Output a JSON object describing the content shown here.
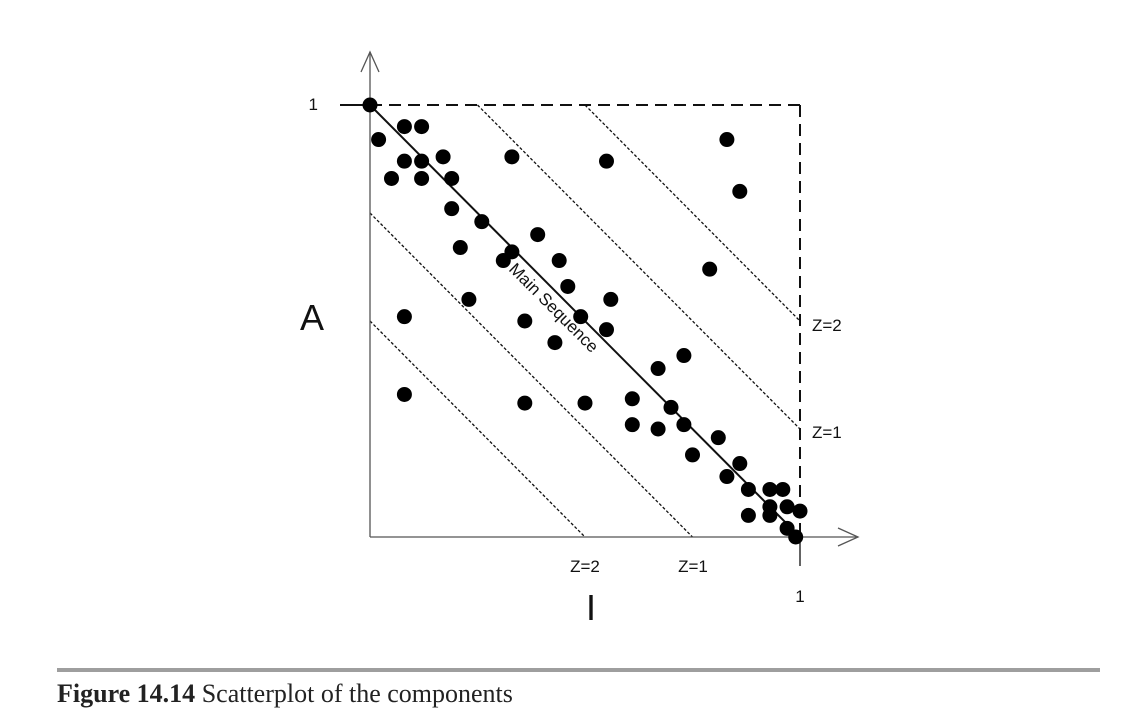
{
  "chart_data": {
    "type": "scatter",
    "title": "",
    "xlabel": "I",
    "ylabel": "A",
    "xlim": [
      0,
      1
    ],
    "ylim": [
      0,
      1
    ],
    "x_tick_labels": [
      "1"
    ],
    "y_tick_labels": [
      "1"
    ],
    "grid": false,
    "reference_lines": [
      {
        "label": "Main Sequence",
        "intercept": 1.0,
        "style": "solid"
      },
      {
        "label": "Z=1",
        "intercept": 1.25,
        "style": "dotted",
        "side": "upper"
      },
      {
        "label": "Z=2",
        "intercept": 1.5,
        "style": "dotted",
        "side": "upper"
      },
      {
        "label": "Z=1",
        "intercept": 0.75,
        "style": "dotted",
        "side": "lower"
      },
      {
        "label": "Z=2",
        "intercept": 0.5,
        "style": "dotted",
        "side": "lower"
      }
    ],
    "bounding_box": {
      "style": "dashed",
      "x": [
        0,
        1
      ],
      "y": [
        0,
        1
      ]
    },
    "points": [
      [
        0.0,
        1.0
      ],
      [
        0.02,
        0.92
      ],
      [
        0.08,
        0.95
      ],
      [
        0.12,
        0.95
      ],
      [
        0.08,
        0.87
      ],
      [
        0.12,
        0.87
      ],
      [
        0.17,
        0.88
      ],
      [
        0.05,
        0.83
      ],
      [
        0.12,
        0.83
      ],
      [
        0.19,
        0.83
      ],
      [
        0.19,
        0.76
      ],
      [
        0.26,
        0.73
      ],
      [
        0.21,
        0.67
      ],
      [
        0.31,
        0.64
      ],
      [
        0.39,
        0.7
      ],
      [
        0.44,
        0.64
      ],
      [
        0.46,
        0.58
      ],
      [
        0.23,
        0.55
      ],
      [
        0.08,
        0.51
      ],
      [
        0.36,
        0.5
      ],
      [
        0.49,
        0.51
      ],
      [
        0.56,
        0.55
      ],
      [
        0.55,
        0.48
      ],
      [
        0.43,
        0.45
      ],
      [
        0.33,
        0.66
      ],
      [
        0.08,
        0.33
      ],
      [
        0.36,
        0.31
      ],
      [
        0.5,
        0.31
      ],
      [
        0.61,
        0.32
      ],
      [
        0.67,
        0.39
      ],
      [
        0.7,
        0.3
      ],
      [
        0.73,
        0.42
      ],
      [
        0.61,
        0.26
      ],
      [
        0.67,
        0.25
      ],
      [
        0.73,
        0.26
      ],
      [
        0.81,
        0.23
      ],
      [
        0.75,
        0.19
      ],
      [
        0.86,
        0.17
      ],
      [
        0.83,
        0.14
      ],
      [
        0.88,
        0.11
      ],
      [
        0.93,
        0.11
      ],
      [
        0.96,
        0.11
      ],
      [
        0.93,
        0.07
      ],
      [
        0.97,
        0.07
      ],
      [
        1.0,
        0.06
      ],
      [
        0.88,
        0.05
      ],
      [
        0.93,
        0.05
      ],
      [
        0.97,
        0.02
      ],
      [
        0.99,
        0.0
      ],
      [
        0.55,
        0.87
      ],
      [
        0.33,
        0.88
      ],
      [
        0.83,
        0.92
      ],
      [
        0.86,
        0.8
      ],
      [
        0.79,
        0.62
      ]
    ]
  },
  "caption": {
    "label": "Figure 14.14",
    "text": "Scatterplot of the components"
  }
}
